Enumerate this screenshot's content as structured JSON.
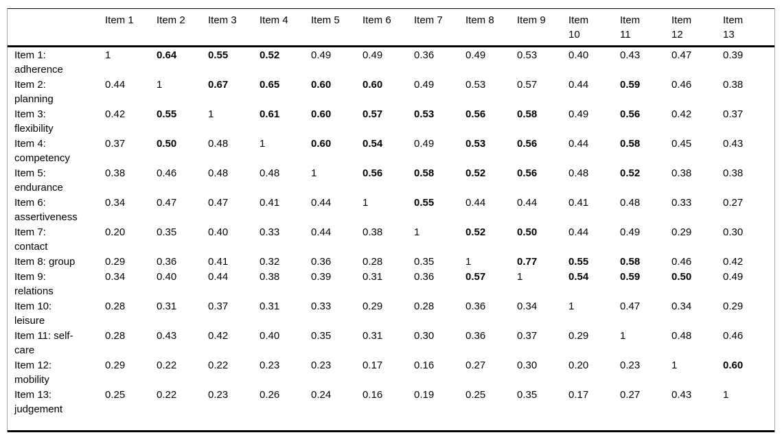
{
  "table": {
    "corner_label": "",
    "columns": [
      "Item 1",
      "Item 2",
      "Item 3",
      "Item 4",
      "Item 5",
      "Item 6",
      "Item 7",
      "Item 8",
      "Item 9",
      "Item 10",
      "Item 11",
      "Item 12",
      "Item 13"
    ],
    "rows": [
      {
        "label": "Item 1: adherence",
        "cells": [
          [
            "1",
            0
          ],
          [
            "0.64",
            1
          ],
          [
            "0.55",
            1
          ],
          [
            "0.52",
            1
          ],
          [
            "0.49",
            0
          ],
          [
            "0.49",
            0
          ],
          [
            "0.36",
            0
          ],
          [
            "0.49",
            0
          ],
          [
            "0.53",
            0
          ],
          [
            "0.40",
            0
          ],
          [
            "0.43",
            0
          ],
          [
            "0.47",
            0
          ],
          [
            "0.39",
            0
          ]
        ]
      },
      {
        "label": "Item 2: planning",
        "cells": [
          [
            "0.44",
            0
          ],
          [
            "1",
            0
          ],
          [
            "0.67",
            1
          ],
          [
            "0.65",
            1
          ],
          [
            "0.60",
            1
          ],
          [
            "0.60",
            1
          ],
          [
            "0.49",
            0
          ],
          [
            "0.53",
            0
          ],
          [
            "0.57",
            0
          ],
          [
            "0.44",
            0
          ],
          [
            "0.59",
            1
          ],
          [
            "0.46",
            0
          ],
          [
            "0.38",
            0
          ]
        ]
      },
      {
        "label": "Item 3: flexibility",
        "cells": [
          [
            "0.42",
            0
          ],
          [
            "0.55",
            1
          ],
          [
            "1",
            0
          ],
          [
            "0.61",
            1
          ],
          [
            "0.60",
            1
          ],
          [
            "0.57",
            1
          ],
          [
            "0.53",
            1
          ],
          [
            "0.56",
            1
          ],
          [
            "0.58",
            1
          ],
          [
            "0.49",
            0
          ],
          [
            "0.56",
            1
          ],
          [
            "0.42",
            0
          ],
          [
            "0.37",
            0
          ]
        ]
      },
      {
        "label": "Item 4: competency",
        "cells": [
          [
            "0.37",
            0
          ],
          [
            "0.50",
            1
          ],
          [
            "0.48",
            0
          ],
          [
            "1",
            0
          ],
          [
            "0.60",
            1
          ],
          [
            "0.54",
            1
          ],
          [
            "0.49",
            0
          ],
          [
            "0.53",
            1
          ],
          [
            "0.56",
            1
          ],
          [
            "0.44",
            0
          ],
          [
            "0.58",
            1
          ],
          [
            "0.45",
            0
          ],
          [
            "0.43",
            0
          ]
        ]
      },
      {
        "label": "Item 5: endurance",
        "cells": [
          [
            "0.38",
            0
          ],
          [
            "0.46",
            0
          ],
          [
            "0.48",
            0
          ],
          [
            "0.48",
            0
          ],
          [
            "1",
            0
          ],
          [
            "0.56",
            1
          ],
          [
            "0.58",
            1
          ],
          [
            "0.52",
            1
          ],
          [
            "0.56",
            1
          ],
          [
            "0.48",
            0
          ],
          [
            "0.52",
            1
          ],
          [
            "0.38",
            0
          ],
          [
            "0.38",
            0
          ]
        ]
      },
      {
        "label": "Item 6: assertiveness",
        "cells": [
          [
            "0.34",
            0
          ],
          [
            "0.47",
            0
          ],
          [
            "0.47",
            0
          ],
          [
            "0.41",
            0
          ],
          [
            "0.44",
            0
          ],
          [
            "1",
            0
          ],
          [
            "0.55",
            1
          ],
          [
            "0.44",
            0
          ],
          [
            "0.44",
            0
          ],
          [
            "0.41",
            0
          ],
          [
            "0.48",
            0
          ],
          [
            "0.33",
            0
          ],
          [
            "0.27",
            0
          ]
        ]
      },
      {
        "label": "Item 7: contact",
        "cells": [
          [
            "0.20",
            0
          ],
          [
            "0.35",
            0
          ],
          [
            "0.40",
            0
          ],
          [
            "0.33",
            0
          ],
          [
            "0.44",
            0
          ],
          [
            "0.38",
            0
          ],
          [
            "1",
            0
          ],
          [
            "0.52",
            1
          ],
          [
            "0.50",
            1
          ],
          [
            "0.44",
            0
          ],
          [
            "0.49",
            0
          ],
          [
            "0.29",
            0
          ],
          [
            "0.30",
            0
          ]
        ]
      },
      {
        "label": "Item 8: group",
        "cells": [
          [
            "0.29",
            0
          ],
          [
            "0.36",
            0
          ],
          [
            "0.41",
            0
          ],
          [
            "0.32",
            0
          ],
          [
            "0.36",
            0
          ],
          [
            "0.28",
            0
          ],
          [
            "0.35",
            0
          ],
          [
            "1",
            0
          ],
          [
            "0.77",
            1
          ],
          [
            "0.55",
            1
          ],
          [
            "0.58",
            1
          ],
          [
            "0.46",
            0
          ],
          [
            "0.42",
            0
          ]
        ]
      },
      {
        "label": "Item 9: relations",
        "cells": [
          [
            "0.34",
            0
          ],
          [
            "0.40",
            0
          ],
          [
            "0.44",
            0
          ],
          [
            "0.38",
            0
          ],
          [
            "0.39",
            0
          ],
          [
            "0.31",
            0
          ],
          [
            "0.36",
            0
          ],
          [
            "0.57",
            1
          ],
          [
            "1",
            0
          ],
          [
            "0.54",
            1
          ],
          [
            "0.59",
            1
          ],
          [
            "0.50",
            1
          ],
          [
            "0.49",
            0
          ]
        ]
      },
      {
        "label": "Item 10: leisure",
        "cells": [
          [
            "0.28",
            0
          ],
          [
            "0.31",
            0
          ],
          [
            "0.37",
            0
          ],
          [
            "0.31",
            0
          ],
          [
            "0.33",
            0
          ],
          [
            "0.29",
            0
          ],
          [
            "0.28",
            0
          ],
          [
            "0.36",
            0
          ],
          [
            "0.34",
            0
          ],
          [
            "1",
            0
          ],
          [
            "0.47",
            0
          ],
          [
            "0.34",
            0
          ],
          [
            "0.29",
            0
          ]
        ]
      },
      {
        "label": "Item 11: self-care",
        "cells": [
          [
            "0.28",
            0
          ],
          [
            "0.43",
            0
          ],
          [
            "0.42",
            0
          ],
          [
            "0.40",
            0
          ],
          [
            "0.35",
            0
          ],
          [
            "0.31",
            0
          ],
          [
            "0.30",
            0
          ],
          [
            "0.36",
            0
          ],
          [
            "0.37",
            0
          ],
          [
            "0.29",
            0
          ],
          [
            "1",
            0
          ],
          [
            "0.48",
            0
          ],
          [
            "0.46",
            0
          ]
        ]
      },
      {
        "label": "Item 12: mobility",
        "cells": [
          [
            "0.29",
            0
          ],
          [
            "0.22",
            0
          ],
          [
            "0.22",
            0
          ],
          [
            "0.23",
            0
          ],
          [
            "0.23",
            0
          ],
          [
            "0.17",
            0
          ],
          [
            "0.16",
            0
          ],
          [
            "0.27",
            0
          ],
          [
            "0.30",
            0
          ],
          [
            "0.20",
            0
          ],
          [
            "0.23",
            0
          ],
          [
            "1",
            0
          ],
          [
            "0.60",
            1
          ]
        ]
      },
      {
        "label": "Item 13: judgement",
        "cells": [
          [
            "0.25",
            0
          ],
          [
            "0.22",
            0
          ],
          [
            "0.23",
            0
          ],
          [
            "0.26",
            0
          ],
          [
            "0.24",
            0
          ],
          [
            "0.16",
            0
          ],
          [
            "0.19",
            0
          ],
          [
            "0.25",
            0
          ],
          [
            "0.35",
            0
          ],
          [
            "0.17",
            0
          ],
          [
            "0.27",
            0
          ],
          [
            "0.43",
            0
          ],
          [
            "1",
            0
          ]
        ]
      }
    ]
  }
}
